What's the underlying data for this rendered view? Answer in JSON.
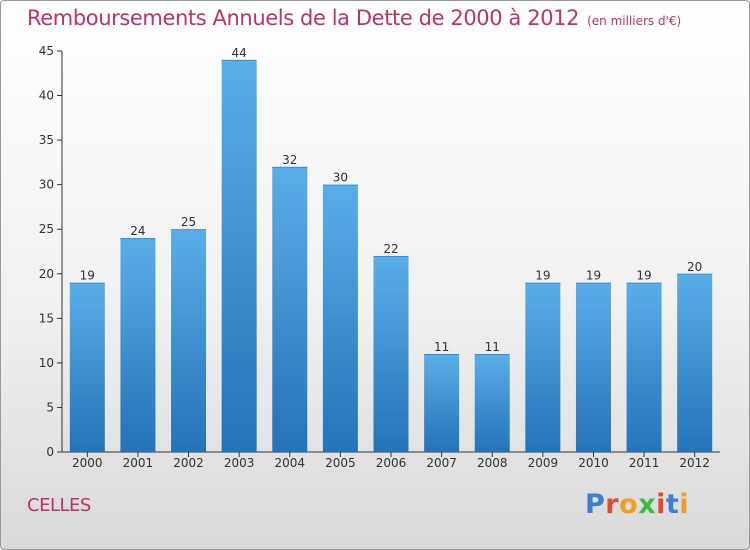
{
  "title": "Remboursements Annuels de la Dette de 2000 à 2012",
  "unit_note": "(en milliers d'€)",
  "commune": "CELLES",
  "logo": {
    "text": "Proxiti",
    "colors": [
      "#3b7fd0",
      "#e04a2e",
      "#f0a020",
      "#3bbd3b",
      "#e04a2e",
      "#3b7fd0",
      "#f0a020"
    ]
  },
  "colors": {
    "title": "#c0306a",
    "bar_top": "#5aaee8",
    "bar_bottom": "#2473b8",
    "axis": "#333333",
    "grid": "#cccccc"
  },
  "chart_data": {
    "type": "bar",
    "title": "Remboursements Annuels de la Dette de 2000 à 2012",
    "xlabel": "",
    "ylabel": "",
    "categories": [
      "2000",
      "2001",
      "2002",
      "2003",
      "2004",
      "2005",
      "2006",
      "2007",
      "2008",
      "2009",
      "2010",
      "2011",
      "2012"
    ],
    "values": [
      19,
      24,
      25,
      44,
      32,
      30,
      22,
      11,
      11,
      19,
      19,
      19,
      20
    ],
    "ylim": [
      0,
      45
    ],
    "yticks": [
      0,
      5,
      10,
      15,
      20,
      25,
      30,
      35,
      40,
      45
    ],
    "grid": false,
    "data_labels": true
  }
}
